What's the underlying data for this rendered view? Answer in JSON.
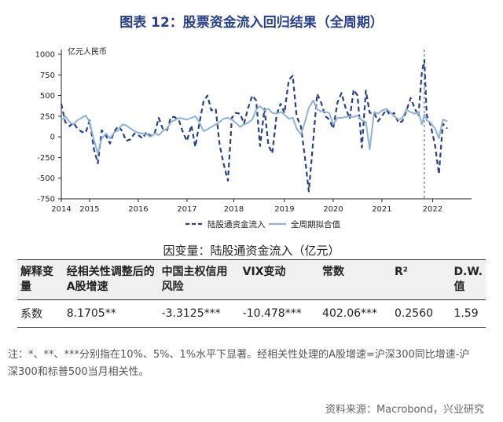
{
  "title": "图表 12：股票资金流入回归结果（全周期）",
  "chart_data": {
    "type": "line",
    "unit_label": "亿元人民币",
    "ylim": [
      -750,
      1000
    ],
    "yticks": [
      "1000",
      "750",
      "500",
      "250",
      "0",
      "-250",
      "-500",
      "-750"
    ],
    "ytick_values": [
      1000,
      750,
      500,
      250,
      0,
      -250,
      -500,
      -750
    ],
    "xlim": [
      2014.0,
      2022.42
    ],
    "xticks": [
      {
        "label": "2014",
        "x": 2014.0
      },
      {
        "label": "2015",
        "x": 2014.58
      },
      {
        "label": "2016",
        "x": 2015.58
      },
      {
        "label": "2017",
        "x": 2016.58
      },
      {
        "label": "2018",
        "x": 2017.54
      },
      {
        "label": "2019",
        "x": 2018.58
      },
      {
        "label": "2020",
        "x": 2019.58
      },
      {
        "label": "2021",
        "x": 2020.58
      },
      {
        "label": "2022",
        "x": 2021.62
      }
    ],
    "vline_x": 2021.45,
    "series": [
      {
        "name": "陆股通资金流入",
        "style": "dashed",
        "color": "#27408b",
        "x": [
          2014.0,
          2014.08,
          2014.17,
          2014.25,
          2014.33,
          2014.42,
          2014.5,
          2014.58,
          2014.67,
          2014.75,
          2014.83,
          2014.92,
          2015.0,
          2015.08,
          2015.17,
          2015.25,
          2015.33,
          2015.42,
          2015.5,
          2015.58,
          2015.67,
          2015.75,
          2015.83,
          2015.92,
          2016.0,
          2016.08,
          2016.17,
          2016.25,
          2016.33,
          2016.42,
          2016.5,
          2016.58,
          2016.67,
          2016.75,
          2016.83,
          2016.92,
          2017.0,
          2017.08,
          2017.17,
          2017.25,
          2017.33,
          2017.42,
          2017.5,
          2017.58,
          2017.67,
          2017.75,
          2017.83,
          2017.92,
          2018.0,
          2018.08,
          2018.17,
          2018.25,
          2018.33,
          2018.42,
          2018.5,
          2018.58,
          2018.67,
          2018.75,
          2018.83,
          2018.92,
          2019.0,
          2019.08,
          2019.17,
          2019.25,
          2019.33,
          2019.42,
          2019.5,
          2019.58,
          2019.67,
          2019.75,
          2019.83,
          2019.92,
          2020.0,
          2020.08,
          2020.17,
          2020.25,
          2020.33,
          2020.42,
          2020.5,
          2020.58,
          2020.67,
          2020.75,
          2020.83,
          2020.92,
          2021.0,
          2021.08,
          2021.17,
          2021.25,
          2021.33,
          2021.4,
          2021.45,
          2021.5,
          2021.58,
          2021.67,
          2021.75,
          2021.83,
          2021.92
        ],
        "y": [
          400,
          180,
          130,
          170,
          100,
          60,
          50,
          200,
          -150,
          -320,
          80,
          10,
          -80,
          60,
          130,
          70,
          -50,
          -30,
          40,
          20,
          -20,
          60,
          10,
          50,
          230,
          100,
          80,
          240,
          240,
          190,
          50,
          -50,
          140,
          -120,
          150,
          430,
          500,
          320,
          340,
          -100,
          -320,
          -530,
          230,
          290,
          280,
          160,
          340,
          500,
          440,
          -110,
          340,
          -100,
          -200,
          270,
          400,
          290,
          690,
          740,
          250,
          120,
          -250,
          -660,
          -50,
          520,
          420,
          250,
          210,
          100,
          420,
          530,
          360,
          220,
          570,
          500,
          -130,
          560,
          290,
          290,
          190,
          250,
          330,
          260,
          290,
          170,
          190,
          310,
          470,
          350,
          250,
          790,
          930,
          260,
          140,
          -100,
          -450,
          160,
          100
        ]
      },
      {
        "name": "全周期拟合值",
        "style": "solid",
        "color": "#8db3d9",
        "x": [
          2014.0,
          2014.08,
          2014.17,
          2014.25,
          2014.33,
          2014.42,
          2014.5,
          2014.58,
          2014.67,
          2014.75,
          2014.83,
          2014.92,
          2015.0,
          2015.08,
          2015.17,
          2015.25,
          2015.33,
          2015.42,
          2015.5,
          2015.58,
          2015.67,
          2015.75,
          2015.83,
          2015.92,
          2016.0,
          2016.08,
          2016.17,
          2016.25,
          2016.33,
          2016.42,
          2016.5,
          2016.58,
          2016.67,
          2016.75,
          2016.83,
          2016.92,
          2017.0,
          2017.08,
          2017.17,
          2017.25,
          2017.33,
          2017.42,
          2017.5,
          2017.58,
          2017.67,
          2017.75,
          2017.83,
          2017.92,
          2018.0,
          2018.08,
          2018.17,
          2018.25,
          2018.33,
          2018.42,
          2018.5,
          2018.58,
          2018.67,
          2018.75,
          2018.83,
          2018.92,
          2019.0,
          2019.08,
          2019.17,
          2019.25,
          2019.33,
          2019.42,
          2019.5,
          2019.58,
          2019.67,
          2019.75,
          2019.83,
          2019.92,
          2020.0,
          2020.08,
          2020.17,
          2020.25,
          2020.33,
          2020.42,
          2020.5,
          2020.58,
          2020.67,
          2020.75,
          2020.83,
          2020.92,
          2021.0,
          2021.08,
          2021.17,
          2021.25,
          2021.33,
          2021.4,
          2021.45,
          2021.5,
          2021.58,
          2021.67,
          2021.75,
          2021.83,
          2021.92
        ],
        "y": [
          200,
          250,
          180,
          150,
          200,
          230,
          260,
          180,
          -40,
          -200,
          -20,
          40,
          -20,
          50,
          80,
          150,
          140,
          100,
          70,
          50,
          40,
          30,
          0,
          40,
          20,
          70,
          100,
          180,
          200,
          230,
          220,
          210,
          230,
          250,
          180,
          70,
          90,
          120,
          150,
          180,
          220,
          230,
          210,
          170,
          120,
          150,
          170,
          210,
          330,
          370,
          320,
          340,
          290,
          280,
          300,
          270,
          220,
          230,
          100,
          30,
          180,
          350,
          440,
          330,
          310,
          300,
          290,
          150,
          230,
          230,
          240,
          250,
          240,
          260,
          200,
          180,
          -150,
          300,
          280,
          320,
          340,
          300,
          250,
          210,
          230,
          330,
          300,
          280,
          300,
          150,
          270,
          200,
          170,
          100,
          -20,
          210,
          190
        ]
      }
    ],
    "legend": [
      "陆股通资金流入",
      "全周期拟合值"
    ],
    "legend_position": "bottom-center"
  },
  "table": {
    "caption": "因变量：陆股通资金流入（亿元）",
    "headers": [
      "解释变量",
      "经相关性调整后的A股增速",
      "中国主权信用风险",
      "VIX变动",
      "常数",
      "R²",
      "D.W.值"
    ],
    "row": [
      "系数",
      "8.1705**",
      "-3.3125***",
      "-10.478***",
      "402.06***",
      "0.2560",
      "1.59"
    ]
  },
  "note": "注：*、**、***分别指在10%、5%、1%水平下显著。经相关性处理的A股增速=沪深300同比增速-沪深300和标普500当月相关性。",
  "source": "资料来源：Macrobond，兴业研究"
}
